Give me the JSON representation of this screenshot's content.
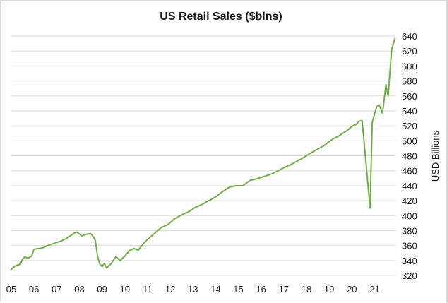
{
  "chart_data": {
    "type": "line",
    "title": "US Retail Sales ($blns)",
    "xlabel": "",
    "ylabel": "USD Billions",
    "y_axis_side": "right",
    "ylim": [
      320,
      640
    ],
    "yticks": [
      320,
      340,
      360,
      380,
      400,
      420,
      440,
      460,
      480,
      500,
      520,
      540,
      560,
      580,
      600,
      620,
      640
    ],
    "xlim": [
      2005,
      2021.95
    ],
    "xticks": [
      {
        "value": 2005,
        "label": "05"
      },
      {
        "value": 2006,
        "label": "06"
      },
      {
        "value": 2007,
        "label": "07"
      },
      {
        "value": 2008,
        "label": "08"
      },
      {
        "value": 2009,
        "label": "09"
      },
      {
        "value": 2010,
        "label": "10"
      },
      {
        "value": 2011,
        "label": "11"
      },
      {
        "value": 2012,
        "label": "12"
      },
      {
        "value": 2013,
        "label": "13"
      },
      {
        "value": 2014,
        "label": "14"
      },
      {
        "value": 2015,
        "label": "15"
      },
      {
        "value": 2016,
        "label": "16"
      },
      {
        "value": 2017,
        "label": "17"
      },
      {
        "value": 2018,
        "label": "18"
      },
      {
        "value": 2019,
        "label": "19"
      },
      {
        "value": 2020,
        "label": "20"
      },
      {
        "value": 2021,
        "label": "21"
      }
    ],
    "grid": {
      "horizontal": true,
      "vertical": false
    },
    "legend": "none",
    "series": [
      {
        "color": "#70ad47",
        "x": [
          2005.0,
          2005.1,
          2005.2,
          2005.3,
          2005.4,
          2005.5,
          2005.6,
          2005.7,
          2005.8,
          2005.9,
          2006.0,
          2006.2,
          2006.4,
          2006.6,
          2006.8,
          2007.0,
          2007.2,
          2007.4,
          2007.6,
          2007.8,
          2007.9,
          2008.1,
          2008.3,
          2008.5,
          2008.6,
          2008.7,
          2008.8,
          2008.9,
          2009.0,
          2009.1,
          2009.2,
          2009.4,
          2009.6,
          2009.8,
          2010.0,
          2010.2,
          2010.4,
          2010.6,
          2010.8,
          2011.0,
          2011.3,
          2011.6,
          2011.9,
          2012.2,
          2012.5,
          2012.8,
          2013.1,
          2013.4,
          2013.7,
          2014.0,
          2014.3,
          2014.6,
          2014.9,
          2015.2,
          2015.5,
          2015.8,
          2016.1,
          2016.4,
          2016.7,
          2017.0,
          2017.3,
          2017.6,
          2017.9,
          2018.2,
          2018.5,
          2018.8,
          2019.0,
          2019.2,
          2019.4,
          2019.6,
          2019.8,
          2020.0,
          2020.1,
          2020.2,
          2020.3,
          2020.45,
          2020.6,
          2020.8,
          2020.9,
          2021.0,
          2021.1,
          2021.2,
          2021.35,
          2021.5,
          2021.6,
          2021.75,
          2021.9
        ],
        "y": [
          328,
          331,
          333,
          334,
          335,
          342,
          345,
          343,
          344,
          346,
          355,
          356,
          357,
          360,
          362,
          364,
          366,
          369,
          373,
          377,
          378,
          373,
          375,
          376,
          372,
          367,
          345,
          335,
          332,
          336,
          330,
          336,
          345,
          340,
          346,
          353,
          356,
          354,
          362,
          368,
          376,
          384,
          388,
          396,
          401,
          405,
          411,
          415,
          420,
          425,
          432,
          438,
          440,
          440,
          447,
          449,
          452,
          455,
          459,
          464,
          468,
          473,
          478,
          484,
          489,
          494,
          499,
          503,
          506,
          510,
          514,
          519,
          521,
          522,
          526,
          527,
          478,
          410,
          525,
          536,
          546,
          548,
          537,
          575,
          560,
          622,
          637
        ]
      }
    ]
  }
}
